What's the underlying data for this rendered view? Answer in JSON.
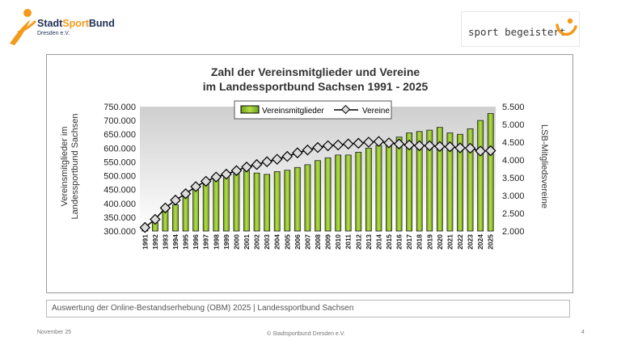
{
  "header": {
    "brand_left_part1": "Stadt",
    "brand_left_part2": "Sport",
    "brand_left_part3": "Bund",
    "brand_left_sub": "Dresden e.V.",
    "brand_right": "sport begeistert"
  },
  "caption": "Auswertung der Online-Bestandserhebung (OBM) 2025 | Landessportbund Sachsen",
  "footer": {
    "date": "November 25",
    "copyright": "© Stadtsportbund Dresden e.V.",
    "page": "4"
  },
  "colors": {
    "bar": "#9acd32",
    "bar_dark": "#5f8f10",
    "line": "#000000",
    "marker": "#dcdcdc",
    "brand_orange": "#f39a1a",
    "brand_navy": "#1f2f55"
  },
  "chart_data": {
    "type": "bar",
    "title": "Zahl der Vereinsmitglieder und Vereine",
    "subtitle": "im Landessportbund Sachsen 1991 - 2025",
    "categories": [
      "1991",
      "1992",
      "1993",
      "1994",
      "1995",
      "1996",
      "1997",
      "1998",
      "1999",
      "2000",
      "2001",
      "2002",
      "2003",
      "2004",
      "2005",
      "2006",
      "2007",
      "2008",
      "2009",
      "2010",
      "2011",
      "2012",
      "2013",
      "2014",
      "2015",
      "2016",
      "2017",
      "2018",
      "2019",
      "2020",
      "2021",
      "2022",
      "2023",
      "2024",
      "2025"
    ],
    "series": [
      {
        "name": "Vereinsmitglieder",
        "kind": "bar",
        "axis": "left",
        "values": [
          305000,
          330000,
          375000,
          395000,
          425000,
          450000,
          470000,
          490000,
          500000,
          515000,
          520000,
          510000,
          505000,
          515000,
          520000,
          530000,
          540000,
          555000,
          565000,
          575000,
          575000,
          585000,
          600000,
          610000,
          615000,
          640000,
          655000,
          660000,
          665000,
          675000,
          655000,
          650000,
          670000,
          700000,
          725000
        ]
      },
      {
        "name": "Vereine",
        "kind": "line",
        "axis": "right",
        "values": [
          2100,
          2330,
          2650,
          2870,
          3050,
          3250,
          3400,
          3520,
          3600,
          3700,
          3800,
          3870,
          3950,
          4020,
          4100,
          4200,
          4280,
          4350,
          4400,
          4420,
          4450,
          4470,
          4500,
          4520,
          4480,
          4450,
          4420,
          4400,
          4400,
          4380,
          4370,
          4340,
          4330,
          4250,
          4260
        ]
      }
    ],
    "ylabel": "Vereinsmitglieder im Landessportbund Sachsen",
    "y2label": "LSB-Mitgliedsvereine",
    "ylim": [
      300000,
      750000
    ],
    "y2lim": [
      2000,
      5500
    ],
    "yticks": [
      "750.000",
      "700.000",
      "650.000",
      "600.000",
      "550.000",
      "500.000",
      "450.000",
      "400.000",
      "350.000",
      "300.000"
    ],
    "y2ticks": [
      "5.500",
      "5.000",
      "4.500",
      "4.000",
      "3.500",
      "3.000",
      "2.500",
      "2.000"
    ],
    "legend_position": "top-center"
  }
}
